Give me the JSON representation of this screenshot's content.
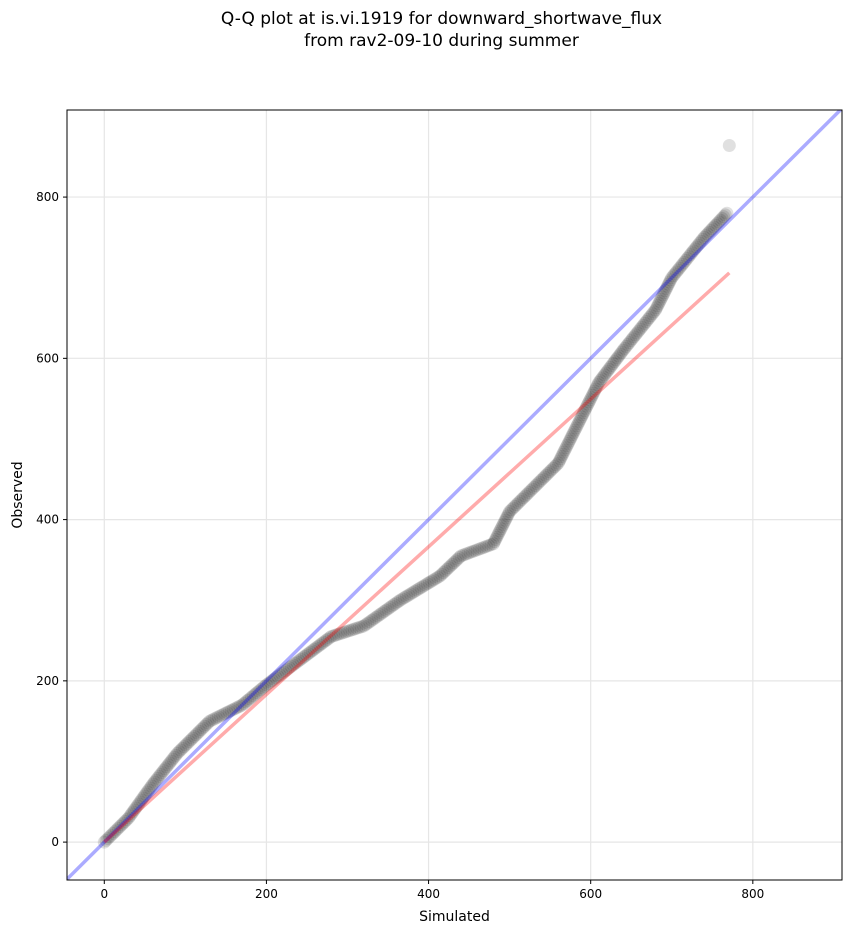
{
  "chart_data": {
    "type": "scatter",
    "title_line1": "Q-Q plot at is.vi.1919 for downward_shortwave_flux",
    "title_line2": "from rav2-09-10 during summer",
    "xlabel": "Simulated",
    "ylabel": "Observed",
    "xlim": [
      -46,
      910
    ],
    "ylim": [
      -47,
      908
    ],
    "xticks": [
      0,
      200,
      400,
      600,
      800
    ],
    "yticks": [
      0,
      200,
      400,
      600,
      800
    ],
    "grid": true,
    "quantile_curve": [
      [
        0,
        0
      ],
      [
        30,
        30
      ],
      [
        60,
        72
      ],
      [
        90,
        110
      ],
      [
        130,
        150
      ],
      [
        170,
        170
      ],
      [
        200,
        195
      ],
      [
        240,
        225
      ],
      [
        280,
        255
      ],
      [
        320,
        268
      ],
      [
        365,
        300
      ],
      [
        414,
        330
      ],
      [
        440,
        355
      ],
      [
        480,
        370
      ],
      [
        500,
        410
      ],
      [
        530,
        440
      ],
      [
        560,
        470
      ],
      [
        590,
        530
      ],
      [
        610,
        570
      ],
      [
        640,
        610
      ],
      [
        680,
        660
      ],
      [
        700,
        700
      ],
      [
        740,
        750
      ],
      [
        768,
        780
      ]
    ],
    "outlier": [
      771,
      864
    ],
    "one_to_one_line": {
      "color": "#0000ff",
      "slope": 1,
      "intercept": 0
    },
    "fit_line": {
      "color": "#ff0000",
      "x": [
        0,
        771
      ],
      "y": [
        0,
        706
      ]
    },
    "point_color": "#000000"
  }
}
